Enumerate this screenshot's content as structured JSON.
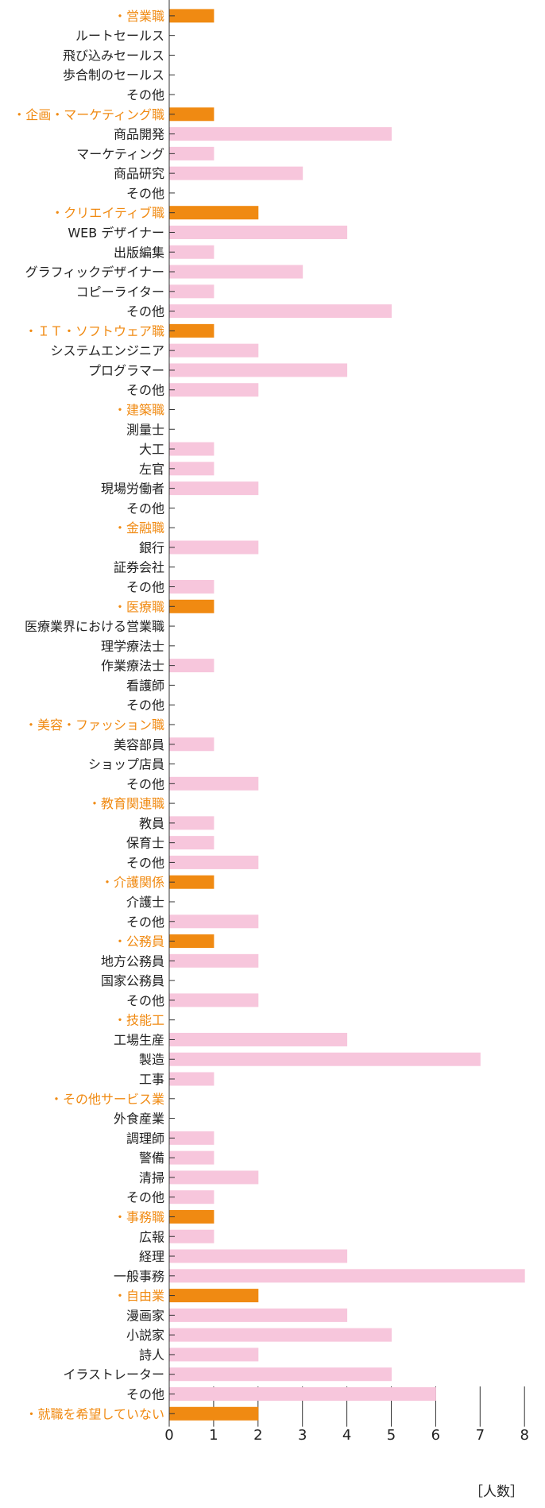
{
  "colors": {
    "category_bar": "#F08A12",
    "item_bar": "#F7C6DC",
    "category_text": "#F08A12",
    "item_text": "#222222",
    "axis": "#333333",
    "grid": "#333333"
  },
  "chart_data": {
    "type": "bar",
    "orientation": "horizontal",
    "xlim": [
      0,
      8
    ],
    "x_ticks": [
      "0",
      "1",
      "2",
      "3",
      "4",
      "5",
      "6",
      "7",
      "8"
    ],
    "unit_label": "［人数］",
    "grid": "vertical lines at integer ticks (lower portion)",
    "rows": [
      {
        "label": "・営業職",
        "value": 1,
        "kind": "category"
      },
      {
        "label": "ルートセールス",
        "value": 0,
        "kind": "item"
      },
      {
        "label": "飛び込みセールス",
        "value": 0,
        "kind": "item"
      },
      {
        "label": "歩合制のセールス",
        "value": 0,
        "kind": "item"
      },
      {
        "label": "その他",
        "value": 0,
        "kind": "item"
      },
      {
        "label": "・企画・マーケティング職",
        "value": 1,
        "kind": "category"
      },
      {
        "label": "商品開発",
        "value": 5,
        "kind": "item"
      },
      {
        "label": "マーケティング",
        "value": 1,
        "kind": "item"
      },
      {
        "label": "商品研究",
        "value": 3,
        "kind": "item"
      },
      {
        "label": "その他",
        "value": 0,
        "kind": "item"
      },
      {
        "label": "・クリエイティブ職",
        "value": 2,
        "kind": "category"
      },
      {
        "label": "WEB デザイナー",
        "value": 4,
        "kind": "item"
      },
      {
        "label": "出版編集",
        "value": 1,
        "kind": "item"
      },
      {
        "label": "グラフィックデザイナー",
        "value": 3,
        "kind": "item"
      },
      {
        "label": "コピーライター",
        "value": 1,
        "kind": "item"
      },
      {
        "label": "その他",
        "value": 5,
        "kind": "item"
      },
      {
        "label": "・ＩＴ・ソフトウェア職",
        "value": 1,
        "kind": "category"
      },
      {
        "label": "システムエンジニア",
        "value": 2,
        "kind": "item"
      },
      {
        "label": "プログラマー",
        "value": 4,
        "kind": "item"
      },
      {
        "label": "その他",
        "value": 2,
        "kind": "item"
      },
      {
        "label": "・建築職",
        "value": 0,
        "kind": "category"
      },
      {
        "label": "測量士",
        "value": 0,
        "kind": "item"
      },
      {
        "label": "大工",
        "value": 1,
        "kind": "item"
      },
      {
        "label": "左官",
        "value": 1,
        "kind": "item"
      },
      {
        "label": "現場労働者",
        "value": 2,
        "kind": "item"
      },
      {
        "label": "その他",
        "value": 0,
        "kind": "item"
      },
      {
        "label": "・金融職",
        "value": 0,
        "kind": "category"
      },
      {
        "label": "銀行",
        "value": 2,
        "kind": "item"
      },
      {
        "label": "証券会社",
        "value": 0,
        "kind": "item"
      },
      {
        "label": "その他",
        "value": 1,
        "kind": "item"
      },
      {
        "label": "・医療職",
        "value": 1,
        "kind": "category"
      },
      {
        "label": "医療業界における営業職",
        "value": 0,
        "kind": "item"
      },
      {
        "label": "理学療法士",
        "value": 0,
        "kind": "item"
      },
      {
        "label": "作業療法士",
        "value": 1,
        "kind": "item"
      },
      {
        "label": "看護師",
        "value": 0,
        "kind": "item"
      },
      {
        "label": "その他",
        "value": 0,
        "kind": "item"
      },
      {
        "label": "・美容・ファッション職",
        "value": 0,
        "kind": "category"
      },
      {
        "label": "美容部員",
        "value": 1,
        "kind": "item"
      },
      {
        "label": "ショップ店員",
        "value": 0,
        "kind": "item"
      },
      {
        "label": "その他",
        "value": 2,
        "kind": "item"
      },
      {
        "label": "・教育関連職",
        "value": 0,
        "kind": "category"
      },
      {
        "label": "教員",
        "value": 1,
        "kind": "item"
      },
      {
        "label": "保育士",
        "value": 1,
        "kind": "item"
      },
      {
        "label": "その他",
        "value": 2,
        "kind": "item"
      },
      {
        "label": "・介護関係",
        "value": 1,
        "kind": "category"
      },
      {
        "label": "介護士",
        "value": 0,
        "kind": "item"
      },
      {
        "label": "その他",
        "value": 2,
        "kind": "item"
      },
      {
        "label": "・公務員",
        "value": 1,
        "kind": "category"
      },
      {
        "label": "地方公務員",
        "value": 2,
        "kind": "item"
      },
      {
        "label": "国家公務員",
        "value": 0,
        "kind": "item"
      },
      {
        "label": "その他",
        "value": 2,
        "kind": "item"
      },
      {
        "label": "・技能工",
        "value": 0,
        "kind": "category"
      },
      {
        "label": "工場生産",
        "value": 4,
        "kind": "item"
      },
      {
        "label": "製造",
        "value": 7,
        "kind": "item"
      },
      {
        "label": "工事",
        "value": 1,
        "kind": "item"
      },
      {
        "label": "・その他サービス業",
        "value": 0,
        "kind": "category"
      },
      {
        "label": "外食産業",
        "value": 0,
        "kind": "item"
      },
      {
        "label": "調理師",
        "value": 1,
        "kind": "item"
      },
      {
        "label": "警備",
        "value": 1,
        "kind": "item"
      },
      {
        "label": "清掃",
        "value": 2,
        "kind": "item"
      },
      {
        "label": "その他",
        "value": 1,
        "kind": "item"
      },
      {
        "label": "・事務職",
        "value": 1,
        "kind": "category"
      },
      {
        "label": "広報",
        "value": 1,
        "kind": "item"
      },
      {
        "label": "経理",
        "value": 4,
        "kind": "item"
      },
      {
        "label": "一般事務",
        "value": 8,
        "kind": "item"
      },
      {
        "label": "・自由業",
        "value": 2,
        "kind": "category"
      },
      {
        "label": "漫画家",
        "value": 4,
        "kind": "item"
      },
      {
        "label": "小説家",
        "value": 5,
        "kind": "item"
      },
      {
        "label": "詩人",
        "value": 2,
        "kind": "item"
      },
      {
        "label": "イラストレーター",
        "value": 5,
        "kind": "item"
      },
      {
        "label": "その他",
        "value": 6,
        "kind": "item"
      },
      {
        "label": "・就職を希望していない",
        "value": 2,
        "kind": "category"
      }
    ]
  }
}
